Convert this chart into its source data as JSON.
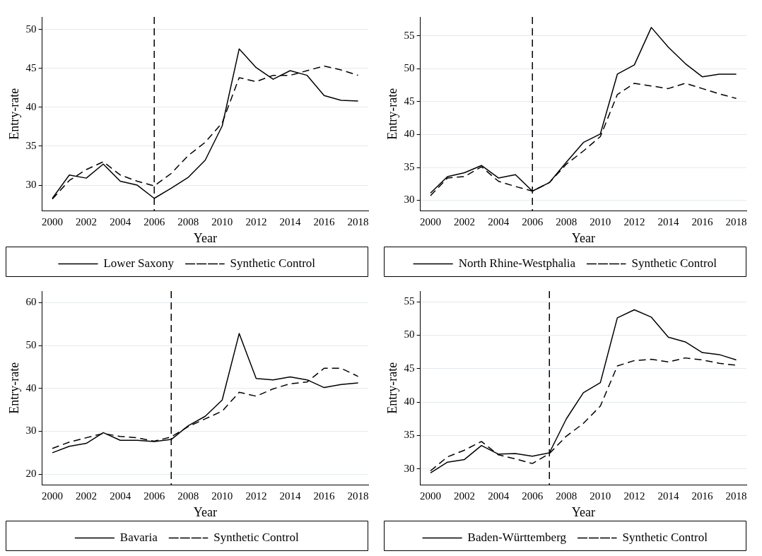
{
  "chart_data": [
    {
      "type": "line",
      "xlabel": "Year",
      "ylabel": "Entry-rate",
      "x": [
        2000,
        2001,
        2002,
        2003,
        2004,
        2005,
        2006,
        2007,
        2008,
        2009,
        2010,
        2011,
        2012,
        2013,
        2014,
        2015,
        2016,
        2017,
        2018
      ],
      "xlim": [
        1999.4,
        2018.6
      ],
      "xticks": [
        2000,
        2002,
        2004,
        2006,
        2008,
        2010,
        2012,
        2014,
        2016,
        2018
      ],
      "ylim": [
        26.7,
        51.6
      ],
      "yticks": [
        30,
        35,
        40,
        45,
        50
      ],
      "grid": "y",
      "legend": "bottom",
      "marker": "none",
      "ref_lines": [
        {
          "axis": "x",
          "value": 2006,
          "line_style": "dashed",
          "color": "#000000"
        }
      ],
      "series": [
        {
          "name": "Lower Saxony",
          "color": "#000000",
          "line_style": "solid",
          "values": [
            28.3,
            31.3,
            30.9,
            32.7,
            30.5,
            30.0,
            28.3,
            29.6,
            31.0,
            33.2,
            37.6,
            47.5,
            45.1,
            43.6,
            44.7,
            44.1,
            41.5,
            40.9,
            40.8
          ]
        },
        {
          "name": "Synthetic Control",
          "color": "#000000",
          "line_style": "dashed",
          "values": [
            28.2,
            30.6,
            32.0,
            33.0,
            31.3,
            30.5,
            29.9,
            31.5,
            33.8,
            35.5,
            38.0,
            43.8,
            43.3,
            44.1,
            44.1,
            44.7,
            45.3,
            44.8,
            44.1
          ]
        }
      ]
    },
    {
      "type": "line",
      "xlabel": "Year",
      "ylabel": "Entry-rate",
      "x": [
        2000,
        2001,
        2002,
        2003,
        2004,
        2005,
        2006,
        2007,
        2008,
        2009,
        2010,
        2011,
        2012,
        2013,
        2014,
        2015,
        2016,
        2017,
        2018
      ],
      "xlim": [
        1999.4,
        2018.6
      ],
      "xticks": [
        2000,
        2002,
        2004,
        2006,
        2008,
        2010,
        2012,
        2014,
        2016,
        2018
      ],
      "ylim": [
        28.4,
        57.9
      ],
      "yticks": [
        30,
        35,
        40,
        45,
        50,
        55
      ],
      "grid": "y",
      "legend": "bottom",
      "marker": "none",
      "ref_lines": [
        {
          "axis": "x",
          "value": 2006,
          "line_style": "dashed",
          "color": "#000000"
        }
      ],
      "series": [
        {
          "name": "North Rhine-Westphalia",
          "color": "#000000",
          "line_style": "solid",
          "values": [
            31.1,
            33.6,
            34.2,
            35.3,
            33.4,
            33.9,
            31.4,
            32.7,
            35.8,
            38.8,
            40.1,
            49.2,
            50.6,
            56.3,
            53.3,
            50.8,
            48.8,
            49.2,
            49.2
          ]
        },
        {
          "name": "Synthetic Control",
          "color": "#000000",
          "line_style": "dashed",
          "values": [
            30.7,
            33.4,
            33.6,
            35.1,
            32.9,
            32.1,
            31.4,
            32.7,
            35.5,
            37.5,
            39.7,
            46.1,
            47.8,
            47.4,
            47.0,
            47.8,
            47.0,
            46.2,
            45.5
          ]
        }
      ]
    },
    {
      "type": "line",
      "xlabel": "Year",
      "ylabel": "Entry-rate",
      "x": [
        2000,
        2001,
        2002,
        2003,
        2004,
        2005,
        2006,
        2007,
        2008,
        2009,
        2010,
        2011,
        2012,
        2013,
        2014,
        2015,
        2016,
        2017,
        2018
      ],
      "xlim": [
        1999.4,
        2018.6
      ],
      "xticks": [
        2000,
        2002,
        2004,
        2006,
        2008,
        2010,
        2012,
        2014,
        2016,
        2018
      ],
      "ylim": [
        17.5,
        62.7
      ],
      "yticks": [
        20,
        30,
        40,
        50,
        60
      ],
      "grid": "y",
      "legend": "bottom",
      "marker": "none",
      "ref_lines": [
        {
          "axis": "x",
          "value": 2007,
          "line_style": "dashed",
          "color": "#000000"
        }
      ],
      "series": [
        {
          "name": "Bavaria",
          "color": "#000000",
          "line_style": "solid",
          "values": [
            25.0,
            26.5,
            27.2,
            29.7,
            27.9,
            27.9,
            27.6,
            28.1,
            31.3,
            33.5,
            37.3,
            52.8,
            42.3,
            42.0,
            42.7,
            42.0,
            40.2,
            40.9,
            41.3
          ]
        },
        {
          "name": "Synthetic Control",
          "color": "#000000",
          "line_style": "dashed",
          "values": [
            26.0,
            27.5,
            28.5,
            29.5,
            28.8,
            28.5,
            27.7,
            28.7,
            31.1,
            32.9,
            34.7,
            39.1,
            38.2,
            39.9,
            41.1,
            41.5,
            44.7,
            44.7,
            42.8
          ]
        }
      ]
    },
    {
      "type": "line",
      "xlabel": "Year",
      "ylabel": "Entry-rate",
      "x": [
        2000,
        2001,
        2002,
        2003,
        2004,
        2005,
        2006,
        2007,
        2008,
        2009,
        2010,
        2011,
        2012,
        2013,
        2014,
        2015,
        2016,
        2017,
        2018
      ],
      "xlim": [
        1999.4,
        2018.6
      ],
      "xticks": [
        2000,
        2002,
        2004,
        2006,
        2008,
        2010,
        2012,
        2014,
        2016,
        2018
      ],
      "ylim": [
        27.6,
        56.6
      ],
      "yticks": [
        30,
        35,
        40,
        45,
        50,
        55
      ],
      "grid": "y",
      "legend": "bottom",
      "marker": "none",
      "ref_lines": [
        {
          "axis": "x",
          "value": 2007,
          "line_style": "dashed",
          "color": "#000000"
        }
      ],
      "series": [
        {
          "name": "Baden-Württemberg",
          "color": "#000000",
          "line_style": "solid",
          "values": [
            29.4,
            31.0,
            31.4,
            33.5,
            32.2,
            32.3,
            31.9,
            32.4,
            37.5,
            41.4,
            42.9,
            52.6,
            53.8,
            52.7,
            49.7,
            49.0,
            47.4,
            47.1,
            46.3
          ]
        },
        {
          "name": "Synthetic Control",
          "color": "#000000",
          "line_style": "dashed",
          "values": [
            29.7,
            31.8,
            32.8,
            34.1,
            32.1,
            31.5,
            30.8,
            32.3,
            34.9,
            36.8,
            39.4,
            45.4,
            46.2,
            46.4,
            46.0,
            46.6,
            46.3,
            45.8,
            45.5
          ]
        }
      ]
    }
  ]
}
